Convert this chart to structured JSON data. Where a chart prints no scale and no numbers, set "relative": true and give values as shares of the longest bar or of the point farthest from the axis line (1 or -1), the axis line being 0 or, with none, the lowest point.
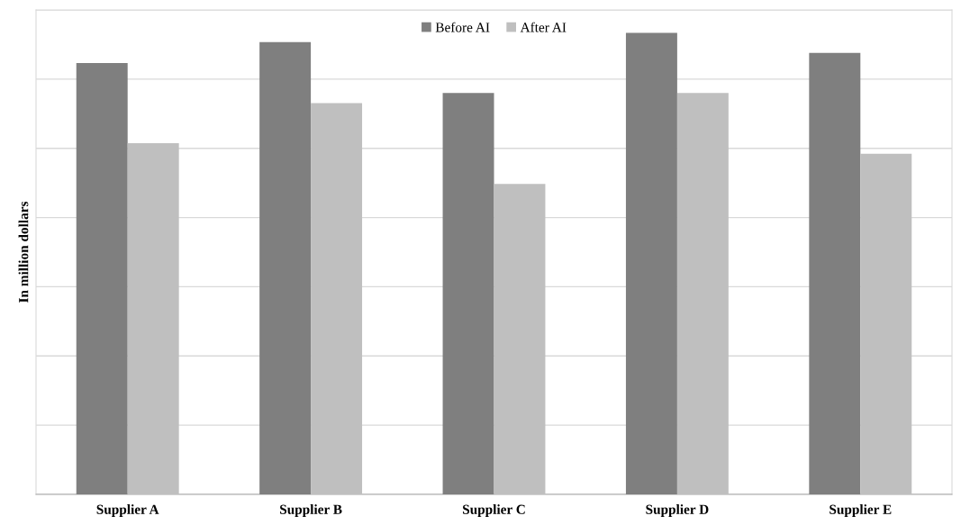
{
  "chart_data": {
    "type": "bar",
    "ylabel": "In million dollars",
    "relative": true,
    "grid": "y",
    "legend": "top",
    "categories": [
      "Supplier A",
      "Supplier B",
      "Supplier C",
      "Supplier D",
      "Supplier E"
    ],
    "series": [
      {
        "name": "Before AI",
        "color": "#7f7f7f",
        "values": [
          0.935,
          0.98,
          0.87,
          1,
          0.957
        ]
      },
      {
        "name": "After AI",
        "color": "#bfbfbf",
        "values": [
          0.761,
          0.848,
          0.673,
          0.87,
          0.738
        ]
      }
    ]
  }
}
